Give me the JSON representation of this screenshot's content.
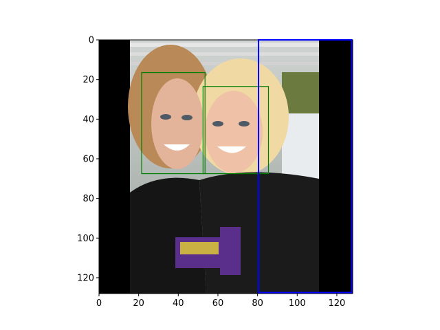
{
  "chart_data": {
    "type": "image-with-bounding-boxes",
    "title": "",
    "xlabel": "",
    "ylabel": "",
    "xlim": [
      0,
      128
    ],
    "ylim": [
      128,
      0
    ],
    "x_ticks": [
      0,
      20,
      40,
      60,
      80,
      100,
      120
    ],
    "y_ticks": [
      0,
      20,
      40,
      60,
      80,
      100,
      120
    ],
    "grid": false,
    "image": {
      "description_free": true,
      "content_extent_x": [
        15.5,
        110.5
      ],
      "padding_color": "#000000"
    },
    "boxes": [
      {
        "x0": 21.5,
        "y0": 16.5,
        "x1": 53.5,
        "y1": 67.5,
        "color": "#008000"
      },
      {
        "x0": 52.5,
        "y0": 23.5,
        "x1": 85.5,
        "y1": 67.5,
        "color": "#008000"
      },
      {
        "x0": 80.5,
        "y0": 0,
        "x1": 127.5,
        "y1": 127.5,
        "color": "#0000ff"
      }
    ]
  }
}
